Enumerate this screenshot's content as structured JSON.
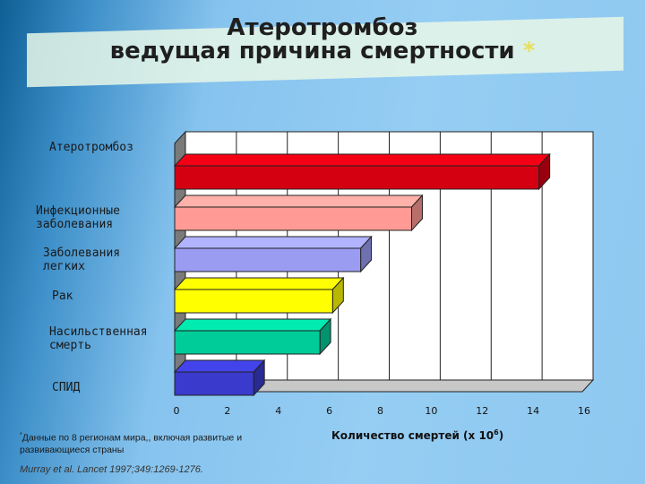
{
  "title": {
    "line1": "Атеротромбоз",
    "line2": "ведущая причина смертности",
    "star": "*"
  },
  "footnote": {
    "marker": "*",
    "text": "Данные по 8 регионам мира,, включая развитые и развивающиеся страны"
  },
  "citation": "Murray et al. Lancet 1997;349:1269-1276.",
  "axis": {
    "xlabel_prefix": "Количество смертей (х 10",
    "xlabel_exp": "6",
    "xlabel_suffix": ")"
  },
  "chart_data": {
    "type": "bar",
    "orientation": "horizontal",
    "categories": [
      "Атеротромбоз",
      "Инфекционные заболевания",
      "Заболевания легких",
      "Рак",
      "Насильственная смерть",
      "СПИД"
    ],
    "values": [
      14.3,
      9.3,
      7.3,
      6.2,
      5.7,
      3.1
    ],
    "colors": [
      "#d40012",
      "#ff9a94",
      "#9a9cf2",
      "#ffff00",
      "#00cc99",
      "#3a3acc"
    ],
    "xlim": [
      0,
      16
    ],
    "xticks": [
      0,
      2,
      4,
      6,
      8,
      10,
      12,
      14,
      16
    ],
    "grid": true,
    "three_d": true
  }
}
